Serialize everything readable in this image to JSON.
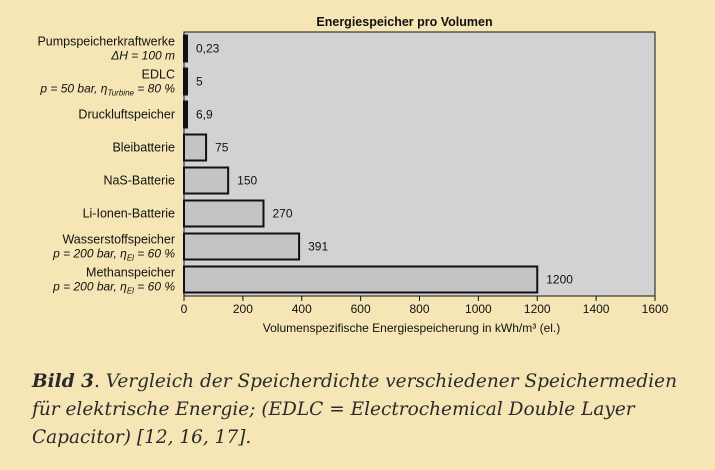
{
  "chart_data": {
    "type": "bar",
    "orientation": "horizontal",
    "title": "Energiespeicher pro Volumen",
    "xlabel": "Volumenspezifische Energiespeicherung in kWh/m³ (el.)",
    "xlim": [
      0,
      1600
    ],
    "xticks": [
      "0",
      "200",
      "400",
      "600",
      "800",
      "1000",
      "1200",
      "1400",
      "1600"
    ],
    "categories": [
      {
        "name": "Pumpspeicherkraftwerke",
        "sub": [
          "ΔH = 100 m"
        ],
        "value": 0.23,
        "value_label": "0,23"
      },
      {
        "name": "EDLC",
        "sub": [
          "p = 50 bar, η",
          "Turbine",
          " = 80 %"
        ],
        "value": 5,
        "value_label": "5"
      },
      {
        "name": "Druckluftspeicher",
        "sub": [],
        "value": 6.9,
        "value_label": "6,9"
      },
      {
        "name": "Bleibatterie",
        "sub": [],
        "value": 75,
        "value_label": "75"
      },
      {
        "name": "NaS-Batterie",
        "sub": [],
        "value": 150,
        "value_label": "150"
      },
      {
        "name": "Li-Ionen-Batterie",
        "sub": [],
        "value": 270,
        "value_label": "270"
      },
      {
        "name": "Wasserstoffspeicher",
        "sub": [
          "p = 200 bar, η",
          "El",
          " = 60 %"
        ],
        "value": 391,
        "value_label": "391"
      },
      {
        "name": "Methanspeicher",
        "sub": [
          "p = 200 bar, η",
          "El",
          " = 60 %"
        ],
        "value": 1200,
        "value_label": "1200"
      }
    ],
    "colors": {
      "bar": "#c4c4c4",
      "bar_stroke": "#111111",
      "plot_bg": "#d2d2d2",
      "page_bg": "#f6e6b5"
    }
  },
  "caption": {
    "bold": "Bild 3",
    "text": ". Vergleich der Speicherdichte verschiedener Speichermedien für elektrische Energie; (EDLC = Electrochemical Double Layer Capacitor) [12, 16, 17]."
  }
}
